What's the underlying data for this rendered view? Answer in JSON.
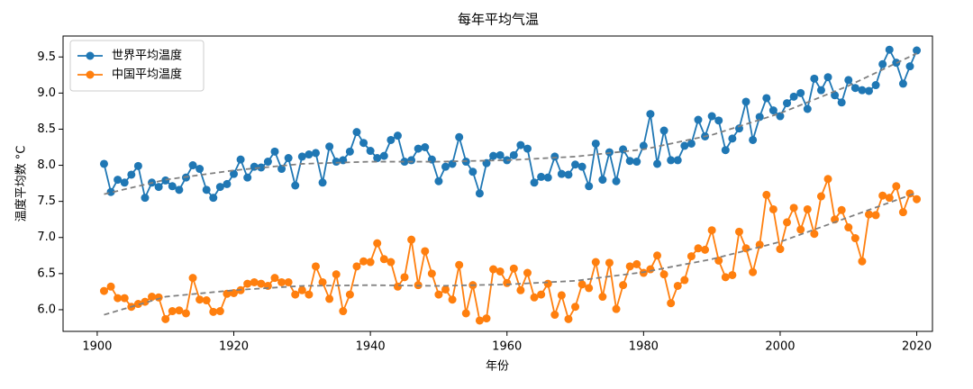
{
  "chart_data": {
    "type": "line",
    "title": "每年平均气温",
    "xlabel": "年份",
    "ylabel": "温度平均数 °C",
    "x": [
      1901,
      1902,
      1903,
      1904,
      1905,
      1906,
      1907,
      1908,
      1909,
      1910,
      1911,
      1912,
      1913,
      1914,
      1915,
      1916,
      1917,
      1918,
      1919,
      1920,
      1921,
      1922,
      1923,
      1924,
      1925,
      1926,
      1927,
      1928,
      1929,
      1930,
      1931,
      1932,
      1933,
      1934,
      1935,
      1936,
      1937,
      1938,
      1939,
      1940,
      1941,
      1942,
      1943,
      1944,
      1945,
      1946,
      1947,
      1948,
      1949,
      1950,
      1951,
      1952,
      1953,
      1954,
      1955,
      1956,
      1957,
      1958,
      1959,
      1960,
      1961,
      1962,
      1963,
      1964,
      1965,
      1966,
      1967,
      1968,
      1969,
      1970,
      1971,
      1972,
      1973,
      1974,
      1975,
      1976,
      1977,
      1978,
      1979,
      1980,
      1981,
      1982,
      1983,
      1984,
      1985,
      1986,
      1987,
      1988,
      1989,
      1990,
      1991,
      1992,
      1993,
      1994,
      1995,
      1996,
      1997,
      1998,
      1999,
      2000,
      2001,
      2002,
      2003,
      2004,
      2005,
      2006,
      2007,
      2008,
      2009,
      2010,
      2011,
      2012,
      2013,
      2014,
      2015,
      2016,
      2017,
      2018,
      2019,
      2020
    ],
    "series": [
      {
        "name": "世界平均温度",
        "color": "#1f77b4",
        "values": [
          8.02,
          7.63,
          7.8,
          7.76,
          7.87,
          7.99,
          7.55,
          7.76,
          7.7,
          7.79,
          7.71,
          7.66,
          7.83,
          8.0,
          7.95,
          7.66,
          7.55,
          7.7,
          7.74,
          7.88,
          8.08,
          7.83,
          7.98,
          7.97,
          8.05,
          8.19,
          7.95,
          8.1,
          7.72,
          8.12,
          8.15,
          8.17,
          7.76,
          8.26,
          8.05,
          8.07,
          8.19,
          8.46,
          8.31,
          8.2,
          8.1,
          8.13,
          8.35,
          8.41,
          8.05,
          8.07,
          8.23,
          8.25,
          8.08,
          7.78,
          7.98,
          8.02,
          8.39,
          8.05,
          7.91,
          7.61,
          8.03,
          8.13,
          8.14,
          8.07,
          8.14,
          8.28,
          8.23,
          7.76,
          7.84,
          7.83,
          8.12,
          7.88,
          7.87,
          8.01,
          7.98,
          7.71,
          8.3,
          7.8,
          8.18,
          7.78,
          8.22,
          8.06,
          8.05,
          8.27,
          8.71,
          8.02,
          8.48,
          8.07,
          8.07,
          8.27,
          8.3,
          8.63,
          8.4,
          8.68,
          8.62,
          8.21,
          8.37,
          8.51,
          8.88,
          8.35,
          8.67,
          8.93,
          8.76,
          8.68,
          8.86,
          8.95,
          9.0,
          8.78,
          9.2,
          9.04,
          9.22,
          8.97,
          8.87,
          9.18,
          9.07,
          9.04,
          9.03,
          9.11,
          9.4,
          9.6,
          9.42,
          9.13,
          9.37,
          9.59
        ]
      },
      {
        "name": "中国平均温度",
        "color": "#ff7f0e",
        "values": [
          6.26,
          6.32,
          6.16,
          6.16,
          6.04,
          6.08,
          6.11,
          6.18,
          6.17,
          5.87,
          5.98,
          5.99,
          5.95,
          6.44,
          6.14,
          6.13,
          5.97,
          5.98,
          6.22,
          6.23,
          6.27,
          6.36,
          6.38,
          6.36,
          6.33,
          6.44,
          6.38,
          6.38,
          6.21,
          6.27,
          6.21,
          6.6,
          6.38,
          6.15,
          6.49,
          5.98,
          6.21,
          6.6,
          6.67,
          6.66,
          6.92,
          6.7,
          6.66,
          6.32,
          6.45,
          6.97,
          6.34,
          6.81,
          6.5,
          6.21,
          6.28,
          6.14,
          6.62,
          5.95,
          6.34,
          5.85,
          5.88,
          6.56,
          6.53,
          6.37,
          6.57,
          6.27,
          6.51,
          6.17,
          6.21,
          6.36,
          5.93,
          6.2,
          5.87,
          6.04,
          6.35,
          6.3,
          6.66,
          6.18,
          6.65,
          6.01,
          6.34,
          6.6,
          6.63,
          6.51,
          6.56,
          6.75,
          6.49,
          6.09,
          6.33,
          6.41,
          6.74,
          6.85,
          6.83,
          7.1,
          6.68,
          6.45,
          6.48,
          7.08,
          6.85,
          6.52,
          6.9,
          7.59,
          7.39,
          6.84,
          7.21,
          7.41,
          7.11,
          7.39,
          7.05,
          7.57,
          7.81,
          7.25,
          7.38,
          7.14,
          6.99,
          6.67,
          7.32,
          7.31,
          7.58,
          7.55,
          7.71,
          7.35,
          7.61,
          7.53
        ]
      }
    ],
    "trends": [
      {
        "color": "#808080",
        "x": [
          1901,
          1910,
          1920,
          1930,
          1940,
          1950,
          1960,
          1970,
          1980,
          1990,
          2000,
          2010,
          2020
        ],
        "values": [
          7.6,
          7.8,
          7.93,
          8.02,
          8.05,
          8.05,
          8.07,
          8.12,
          8.22,
          8.42,
          8.72,
          9.1,
          9.55
        ]
      },
      {
        "color": "#808080",
        "x": [
          1901,
          1910,
          1920,
          1930,
          1940,
          1950,
          1960,
          1970,
          1980,
          1990,
          2000,
          2010,
          2020
        ],
        "values": [
          5.93,
          6.18,
          6.27,
          6.33,
          6.34,
          6.33,
          6.35,
          6.4,
          6.52,
          6.7,
          6.94,
          7.28,
          7.62
        ]
      }
    ],
    "xlim": [
      1895,
      2022.3
    ],
    "xticks": [
      1900,
      1920,
      1940,
      1960,
      1980,
      2000,
      2020
    ],
    "ylim": [
      5.7,
      9.79
    ],
    "yticks": [
      {
        "value": 6,
        "label": "6.0"
      },
      6.5,
      {
        "value": 7,
        "label": "7.0"
      },
      7.5,
      {
        "value": 8,
        "label": "8.0"
      },
      8.5,
      {
        "value": 9,
        "label": "9.0"
      },
      9.5
    ],
    "legend": "upper left",
    "grid": false
  }
}
